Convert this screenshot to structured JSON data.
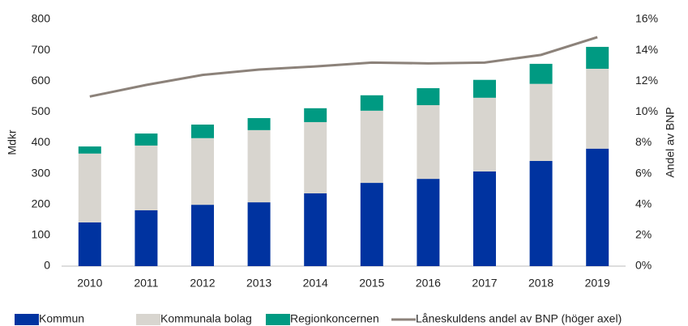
{
  "chart_data": {
    "type": "stacked-bar-line",
    "categories": [
      "2010",
      "2011",
      "2012",
      "2013",
      "2014",
      "2015",
      "2016",
      "2017",
      "2018",
      "2019"
    ],
    "series": [
      {
        "name": "Kommun",
        "color": "#0033a0",
        "values": [
          142,
          181,
          199,
          207,
          236,
          270,
          283,
          307,
          341,
          381
        ]
      },
      {
        "name": "Kommunala bolag",
        "color": "#d8d5cf",
        "values": [
          223,
          210,
          216,
          234,
          231,
          234,
          239,
          239,
          250,
          259
        ]
      },
      {
        "name": "Regionkoncernen",
        "color": "#009a82",
        "values": [
          23,
          39,
          44,
          39,
          45,
          50,
          55,
          58,
          65,
          71
        ]
      },
      {
        "name": "Låneskuldens andel av BNP (höger axel)",
        "color": "#8c827a",
        "axis": "y2",
        "values": [
          11.0,
          11.75,
          12.4,
          12.75,
          12.95,
          13.2,
          13.15,
          13.2,
          13.7,
          14.85
        ]
      }
    ],
    "ylabel": "Mdkr",
    "y2label": "Andel av BNP",
    "ylim": [
      0,
      800
    ],
    "yticks": [
      0,
      100,
      200,
      300,
      400,
      500,
      600,
      700,
      800
    ],
    "y2lim": [
      0,
      16
    ],
    "y2ticks": [
      {
        "value": 0,
        "label": "0%"
      },
      {
        "value": 2,
        "label": "2%"
      },
      {
        "value": 4,
        "label": "4%"
      },
      {
        "value": 6,
        "label": "6%"
      },
      {
        "value": 8,
        "label": "8%"
      },
      {
        "value": 10,
        "label": "10%"
      },
      {
        "value": 12,
        "label": "12%"
      },
      {
        "value": 14,
        "label": "14%"
      },
      {
        "value": 16,
        "label": "16%"
      }
    ],
    "legend": "bottom"
  }
}
